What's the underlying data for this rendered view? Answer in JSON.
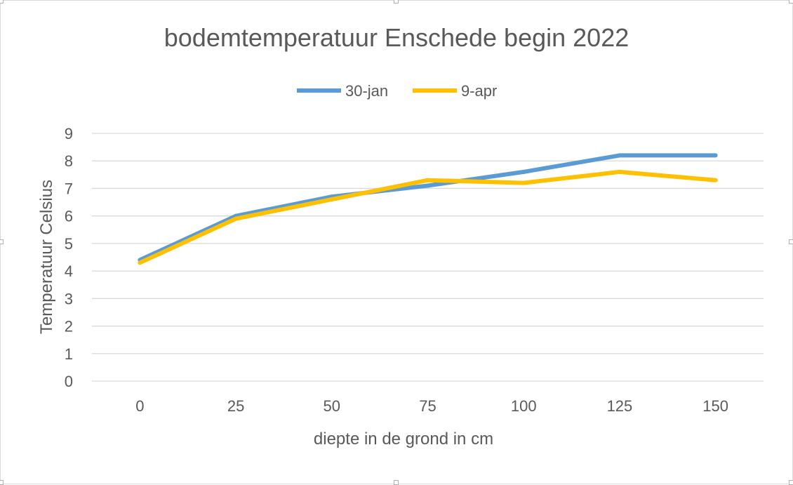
{
  "chart_data": {
    "type": "line",
    "title": "bodemtemperatuur Enschede begin 2022",
    "xlabel": "diepte in de grond in cm",
    "ylabel": "Temperatuur  Celsius",
    "categories": [
      "0",
      "25",
      "50",
      "75",
      "100",
      "125",
      "150"
    ],
    "ylim": [
      0,
      9
    ],
    "yticks": [
      0,
      1,
      2,
      3,
      4,
      5,
      6,
      7,
      8,
      9
    ],
    "grid": true,
    "legend_position": "top",
    "series": [
      {
        "name": "30-jan",
        "color": "#5b9bd5",
        "values": [
          4.4,
          6.0,
          6.7,
          7.1,
          7.6,
          8.2,
          8.2
        ]
      },
      {
        "name": "9-apr",
        "color": "#ffc000",
        "values": [
          4.3,
          5.9,
          6.6,
          7.3,
          7.2,
          7.6,
          7.3
        ]
      }
    ]
  }
}
